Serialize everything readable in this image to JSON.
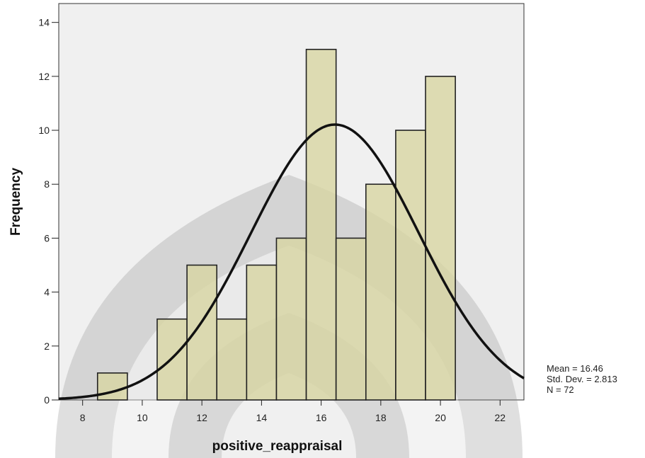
{
  "chart_data": {
    "type": "bar",
    "subtype": "histogram",
    "xlabel": "positive_reappraisal",
    "ylabel": "Frequency",
    "xlim": [
      7.2,
      22.8
    ],
    "ylim": [
      0,
      14.7
    ],
    "x_ticks": [
      8,
      10,
      12,
      14,
      16,
      18,
      20,
      22
    ],
    "y_ticks": [
      0,
      2,
      4,
      6,
      8,
      10,
      12,
      14
    ],
    "bin_width": 1,
    "bins": [
      {
        "x": 9,
        "value": 1
      },
      {
        "x": 11,
        "value": 3
      },
      {
        "x": 12,
        "value": 5
      },
      {
        "x": 13,
        "value": 3
      },
      {
        "x": 14,
        "value": 5
      },
      {
        "x": 15,
        "value": 6
      },
      {
        "x": 16,
        "value": 13
      },
      {
        "x": 17,
        "value": 6
      },
      {
        "x": 18,
        "value": 8
      },
      {
        "x": 19,
        "value": 10
      },
      {
        "x": 20,
        "value": 12
      }
    ],
    "normal_curve": {
      "mean": 16.46,
      "std_dev": 2.813,
      "n": 72
    },
    "stats_labels": [
      "Mean = 16.46",
      "Std. Dev. = 2.813",
      "N = 72"
    ],
    "legend_position": "right",
    "grid": false,
    "colors": {
      "plot_background": "#f0f0f0",
      "bar_fill": "#d8d6a4",
      "bar_stroke": "#222222",
      "curve": "#111111"
    }
  }
}
